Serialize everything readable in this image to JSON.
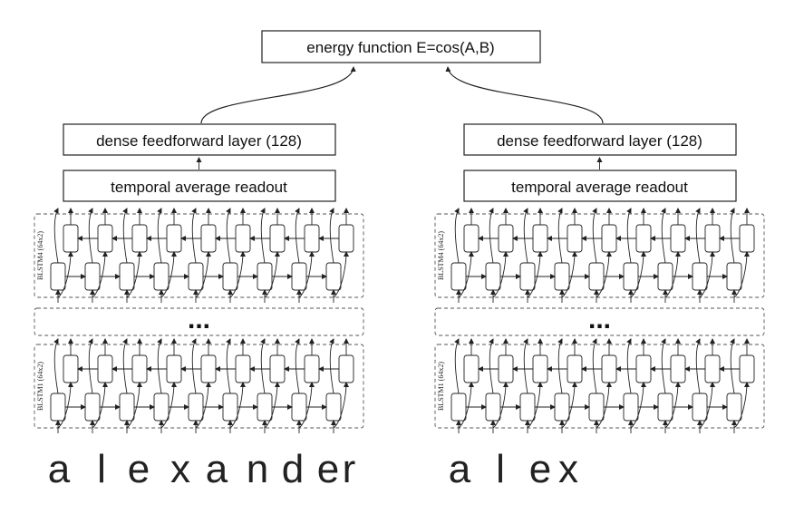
{
  "energy_box": {
    "label": "energy function E=cos(A,B)"
  },
  "towers": [
    {
      "dense_label": "dense feedforward layer (128)",
      "readout_label": "temporal average readout",
      "blstm_top_label": "BLSTM4  (64x2)",
      "blstm_bottom_label": "BLSTM1  (64x2)",
      "ellipsis": "...",
      "input_chars": [
        "a",
        "l",
        "e",
        "x",
        "a",
        "n",
        "d",
        "e",
        "r"
      ]
    },
    {
      "dense_label": "dense feedforward layer (128)",
      "readout_label": "temporal average readout",
      "blstm_top_label": "BLSTM4  (64x2)",
      "blstm_bottom_label": "BLSTM1  (64x2)",
      "ellipsis": "...",
      "input_chars": [
        "a",
        "l",
        "e",
        "x"
      ]
    }
  ],
  "colors": {
    "stroke": "#222222",
    "dashed": "#555555",
    "background": "#ffffff"
  }
}
